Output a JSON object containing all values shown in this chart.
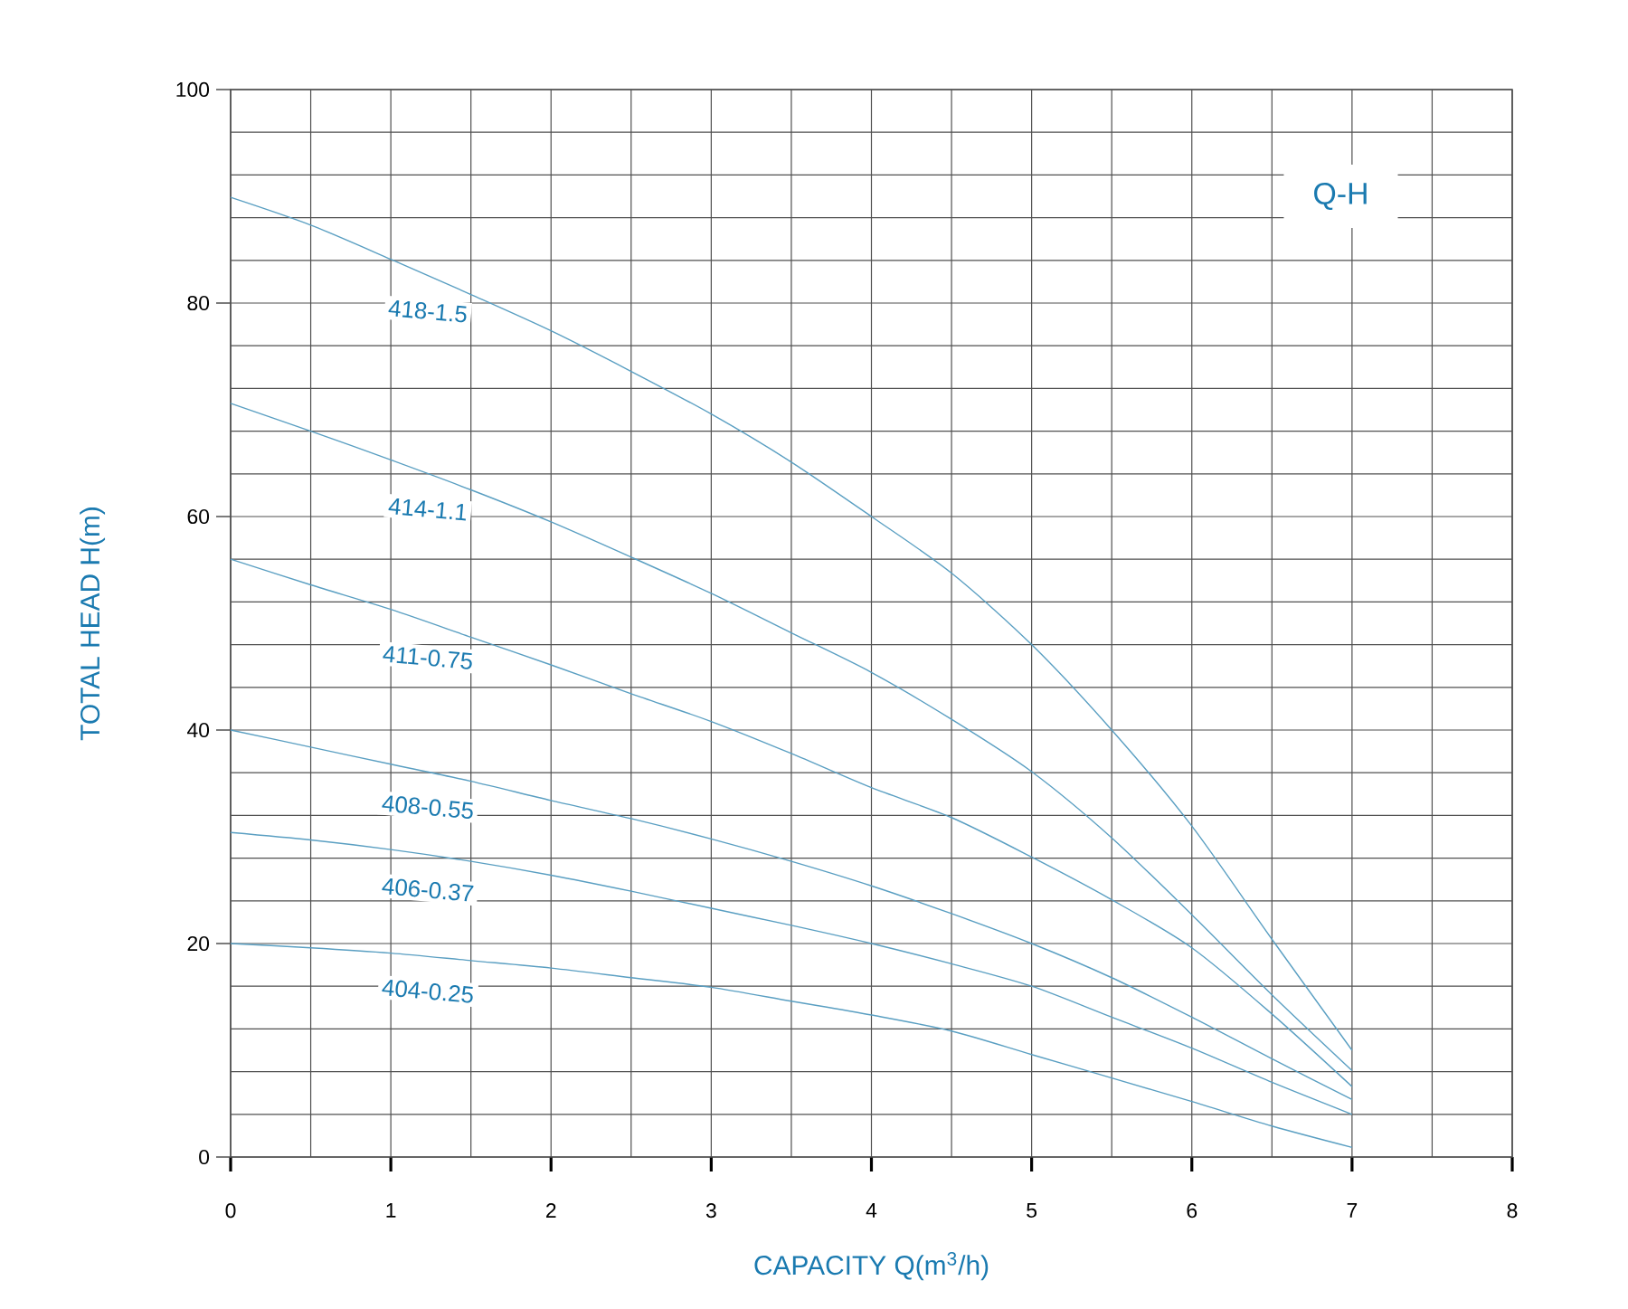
{
  "chart_data": {
    "type": "line",
    "title": "Q-H",
    "xlabel": "CAPACITY  Q(m$^{3}$/h)",
    "ylabel": "TOTAL HEAD H(m)",
    "x": [
      0,
      0.5,
      1,
      1.5,
      2,
      2.5,
      3,
      3.5,
      4,
      4.5,
      5,
      5.5,
      6,
      6.5,
      7
    ],
    "series": [
      {
        "name": "418-1.5",
        "color": "#5a9fc2",
        "values": [
          89.9,
          87.3,
          84.1,
          80.8,
          77.4,
          73.6,
          69.6,
          65.1,
          60,
          54.7,
          48,
          40,
          31,
          20.4,
          10
        ]
      },
      {
        "name": "414-1.1",
        "color": "#5a9fc2",
        "values": [
          70.6,
          68,
          65.3,
          62.5,
          59.5,
          56.2,
          52.8,
          49.1,
          45.4,
          41,
          36.1,
          29.9,
          22.7,
          15.2,
          8.1
        ]
      },
      {
        "name": "411-0.75",
        "color": "#5a9fc2",
        "values": [
          56,
          53.6,
          51.3,
          48.7,
          46.1,
          43.4,
          40.8,
          37.8,
          34.6,
          31.8,
          28.1,
          24.1,
          19.6,
          13.4,
          6.6
        ]
      },
      {
        "name": "408-0.55",
        "color": "#5a9fc2",
        "values": [
          40,
          38.4,
          36.8,
          35.2,
          33.4,
          31.7,
          29.8,
          27.7,
          25.4,
          22.8,
          20,
          16.8,
          13.1,
          9.2,
          5.4
        ]
      },
      {
        "name": "406-0.37",
        "color": "#5a9fc2",
        "values": [
          30.4,
          29.7,
          28.8,
          27.7,
          26.4,
          24.9,
          23.3,
          21.7,
          20,
          18.1,
          16,
          13.1,
          10.2,
          7,
          4
        ]
      },
      {
        "name": "404-0.25",
        "color": "#5a9fc2",
        "values": [
          20,
          19.6,
          19.1,
          18.4,
          17.7,
          16.8,
          15.9,
          14.6,
          13.3,
          11.8,
          9.6,
          7.4,
          5.2,
          2.9,
          0.9
        ]
      }
    ],
    "xlim": [
      0,
      8
    ],
    "ylim": [
      0,
      100
    ],
    "xticks": [
      0,
      1,
      2,
      3,
      4,
      5,
      6,
      7,
      8
    ],
    "yticks": [
      0,
      20,
      40,
      60,
      80,
      100
    ],
    "grid": true,
    "marker": "none",
    "line_style": "solid"
  }
}
